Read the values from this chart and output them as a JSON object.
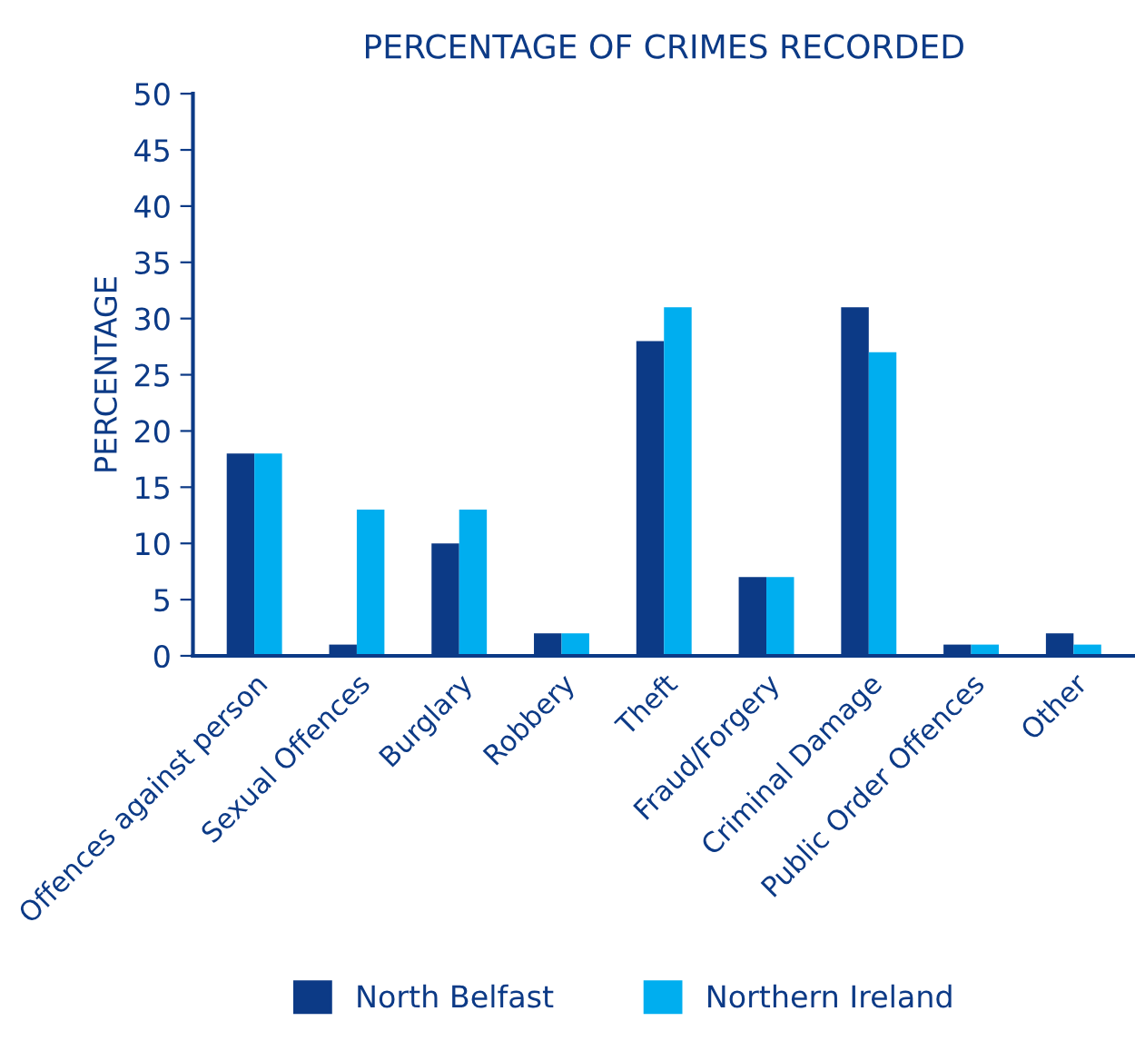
{
  "chart_data": {
    "type": "bar",
    "title": "PERCENTAGE OF CRIMES RECORDED",
    "ylabel": "PERCENTAGE",
    "categories": [
      "Offences against person",
      "Sexual Offences",
      "Burglary",
      "Robbery",
      "Theft",
      "Fraud/Forgery",
      "Criminal Damage",
      "Public Order Offences",
      "Other"
    ],
    "series": [
      {
        "name": "North Belfast",
        "color": "#0c3a86",
        "values": [
          18,
          1,
          10,
          2,
          28,
          7,
          31,
          1,
          2
        ]
      },
      {
        "name": "Northern Ireland",
        "color": "#00aeef",
        "values": [
          18,
          13,
          13,
          2,
          31,
          7,
          27,
          1,
          1
        ]
      }
    ],
    "ylim": [
      0,
      50
    ],
    "yticks": [
      0,
      5,
      10,
      15,
      20,
      25,
      30,
      35,
      40,
      45,
      50
    ],
    "grid": false,
    "legend": "bottom"
  }
}
